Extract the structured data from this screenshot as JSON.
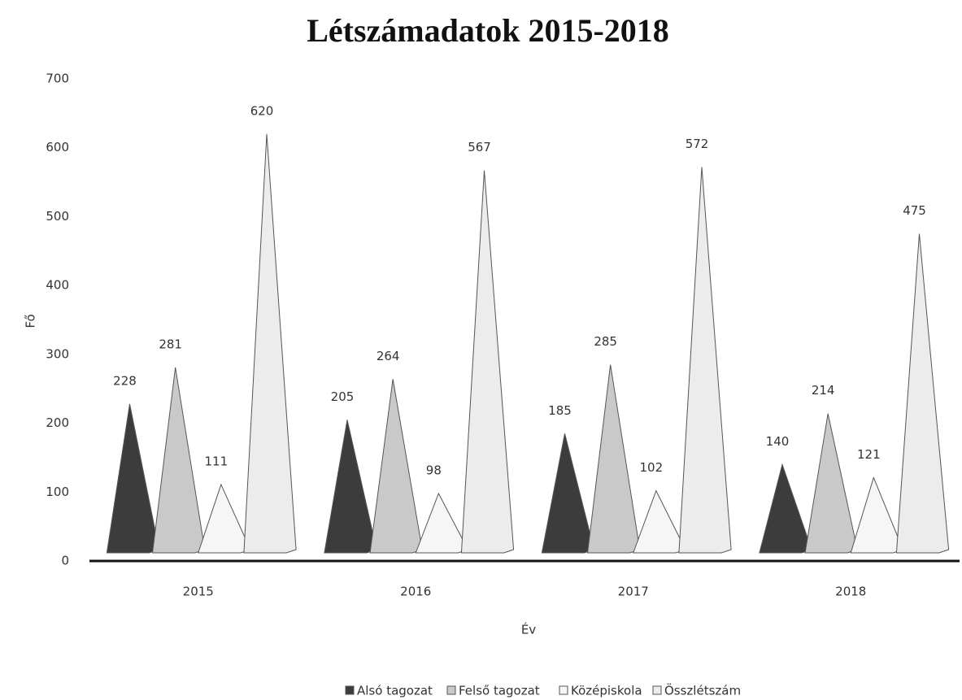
{
  "chart_data": {
    "type": "bar",
    "title": "Létszámadatok 2015-2018",
    "x_label": "Év",
    "y_label": "Fő",
    "categories": [
      "2015",
      "2016",
      "2017",
      "2018"
    ],
    "series": [
      {
        "name": "Alsó tagozat",
        "color": "#3c3c3c",
        "values": [
          228,
          205,
          185,
          140
        ]
      },
      {
        "name": "Felső tagozat",
        "color": "#c9c9c9",
        "values": [
          281,
          264,
          285,
          214
        ]
      },
      {
        "name": "Középiskola",
        "color": "#f6f6f6",
        "values": [
          111,
          98,
          102,
          121
        ]
      },
      {
        "name": "Összlétszám",
        "color": "#ececec",
        "values": [
          620,
          567,
          572,
          475
        ]
      }
    ],
    "ylim": [
      0,
      700
    ],
    "yticks": [
      0,
      100,
      200,
      300,
      400,
      500,
      600,
      700
    ],
    "legend": "bottom"
  }
}
